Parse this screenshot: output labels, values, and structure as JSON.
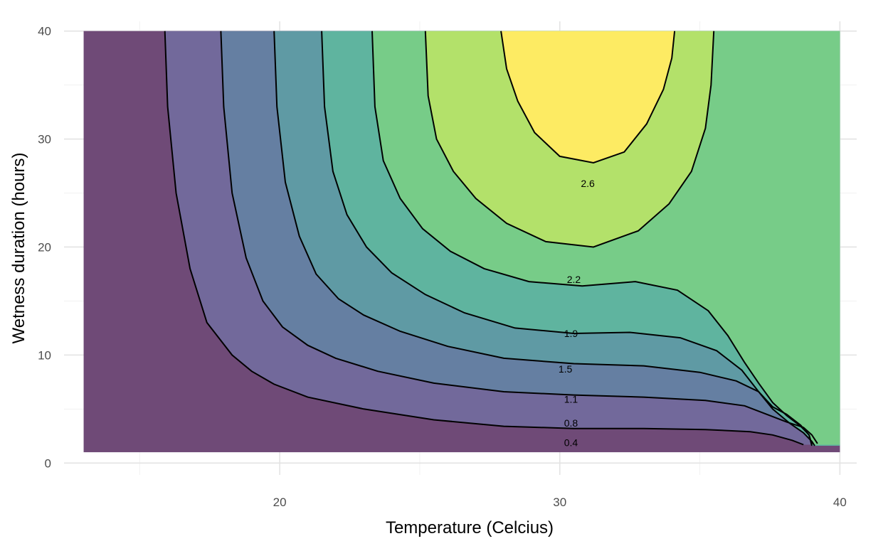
{
  "chart_data": {
    "type": "contour",
    "xlabel": "Temperature (Celcius)",
    "ylabel": "Wetness duration (hours)",
    "xlim": [
      12.3,
      40.6
    ],
    "ylim": [
      -1.1,
      40.9
    ],
    "x_range": [
      13,
      40
    ],
    "y_range": [
      1,
      40
    ],
    "x_ticks": [
      20,
      30,
      40
    ],
    "x_minor_ticks": [
      15,
      25,
      35
    ],
    "y_ticks": [
      0,
      10,
      20,
      30,
      40
    ],
    "y_minor_ticks": [
      5,
      15,
      25,
      35
    ],
    "x_tick_labels": [
      "20",
      "30",
      "40"
    ],
    "y_tick_labels": [
      "0",
      "10",
      "20",
      "30",
      "40"
    ],
    "grid": true,
    "colorscale": "viridis",
    "background_color": "#6f4a77",
    "band_colors": [
      "#6f4a77",
      "#72699b",
      "#657fa2",
      "#5f9aa4",
      "#5fb49f",
      "#77cc88",
      "#b3e16a",
      "#fdeb63"
    ],
    "levels": [
      {
        "value": 0.4,
        "label": "0.4",
        "label_x": 30.4,
        "label_y": 1.9,
        "points": [
          [
            15.9,
            40
          ],
          [
            16.0,
            33
          ],
          [
            16.3,
            25
          ],
          [
            16.8,
            18
          ],
          [
            17.4,
            13
          ],
          [
            18.3,
            10
          ],
          [
            19,
            8.5
          ],
          [
            19.8,
            7.3
          ],
          [
            21,
            6.1
          ],
          [
            23,
            5.0
          ],
          [
            25.5,
            4.0
          ],
          [
            28,
            3.4
          ],
          [
            30.5,
            3.2
          ],
          [
            33,
            3.2
          ],
          [
            35.2,
            3.1
          ],
          [
            36.8,
            2.9
          ],
          [
            37.6,
            2.6
          ],
          [
            38.3,
            2.1
          ],
          [
            38.7,
            1.7
          ]
        ]
      },
      {
        "value": 0.8,
        "label": "0.8",
        "label_x": 30.4,
        "label_y": 3.7,
        "points": [
          [
            17.9,
            40
          ],
          [
            18.0,
            33
          ],
          [
            18.3,
            25
          ],
          [
            18.8,
            19
          ],
          [
            19.4,
            15
          ],
          [
            20.1,
            12.6
          ],
          [
            21,
            10.9
          ],
          [
            22,
            9.7
          ],
          [
            23.5,
            8.5
          ],
          [
            25.5,
            7.4
          ],
          [
            28,
            6.6
          ],
          [
            30.5,
            6.3
          ],
          [
            33,
            6.1
          ],
          [
            35.2,
            5.8
          ],
          [
            36.6,
            5.3
          ],
          [
            37.4,
            4.5
          ],
          [
            38.1,
            3.8
          ],
          [
            38.7,
            3.3
          ],
          [
            39.0,
            2.6
          ],
          [
            39.2,
            1.8
          ]
        ]
      },
      {
        "value": 1.1,
        "label": "1.1",
        "label_x": 30.4,
        "label_y": 5.9,
        "points": [
          [
            19.8,
            40
          ],
          [
            19.9,
            33
          ],
          [
            20.2,
            26
          ],
          [
            20.7,
            21
          ],
          [
            21.3,
            17.5
          ],
          [
            22.1,
            15.2
          ],
          [
            23,
            13.7
          ],
          [
            24.3,
            12.2
          ],
          [
            26,
            10.8
          ],
          [
            28,
            9.7
          ],
          [
            30.5,
            9.2
          ],
          [
            33,
            9.0
          ],
          [
            35,
            8.4
          ],
          [
            36.3,
            7.6
          ],
          [
            37.1,
            6.6
          ],
          [
            37.6,
            5.2
          ],
          [
            38.1,
            4.5
          ],
          [
            38.6,
            3.5
          ],
          [
            38.9,
            2.6
          ],
          [
            39.0,
            1.6
          ]
        ]
      },
      {
        "value": 1.5,
        "label": "1.5",
        "label_x": 30.2,
        "label_y": 8.7,
        "points": [
          [
            21.5,
            40
          ],
          [
            21.6,
            33
          ],
          [
            21.9,
            27
          ],
          [
            22.4,
            23
          ],
          [
            23.1,
            20
          ],
          [
            24,
            17.6
          ],
          [
            25.2,
            15.6
          ],
          [
            26.6,
            13.9
          ],
          [
            28.4,
            12.5
          ],
          [
            30.5,
            12.0
          ],
          [
            32.5,
            12.1
          ],
          [
            34.3,
            11.6
          ],
          [
            35.6,
            10.4
          ],
          [
            36.5,
            8.6
          ],
          [
            37.1,
            6.6
          ],
          [
            37.6,
            5.0
          ],
          [
            38.2,
            3.7
          ],
          [
            38.7,
            2.8
          ],
          [
            39.0,
            2.0
          ],
          [
            39.1,
            1.6
          ]
        ]
      },
      {
        "value": 1.9,
        "label": "1.9",
        "label_x": 30.4,
        "label_y": 12.0,
        "points": [
          [
            23.3,
            40
          ],
          [
            23.4,
            33
          ],
          [
            23.7,
            28
          ],
          [
            24.3,
            24.5
          ],
          [
            25.1,
            21.7
          ],
          [
            26.1,
            19.6
          ],
          [
            27.3,
            18.0
          ],
          [
            28.9,
            16.8
          ],
          [
            30.8,
            16.4
          ],
          [
            32.7,
            16.8
          ],
          [
            34.2,
            16.0
          ],
          [
            35.3,
            14.1
          ],
          [
            36.0,
            11.8
          ],
          [
            36.6,
            9.3
          ],
          [
            37.1,
            7.4
          ],
          [
            37.6,
            5.6
          ],
          [
            38.1,
            4.4
          ],
          [
            38.6,
            3.4
          ],
          [
            38.9,
            2.6
          ],
          [
            39.0,
            1.7
          ]
        ]
      },
      {
        "value": 2.2,
        "label": "2.2",
        "label_x": 30.5,
        "label_y": 17.0,
        "points": [
          [
            25.2,
            40
          ],
          [
            25.3,
            34
          ],
          [
            25.6,
            30
          ],
          [
            26.2,
            27
          ],
          [
            27.0,
            24.5
          ],
          [
            28.1,
            22.2
          ],
          [
            29.5,
            20.5
          ],
          [
            31.2,
            20.0
          ],
          [
            32.8,
            21.5
          ],
          [
            33.9,
            24
          ],
          [
            34.7,
            27
          ],
          [
            35.2,
            31
          ],
          [
            35.4,
            35
          ],
          [
            35.5,
            40
          ]
        ]
      },
      {
        "value": 2.6,
        "label": "2.6",
        "label_x": 31.0,
        "label_y": 25.9,
        "points": [
          [
            27.9,
            40
          ],
          [
            28.1,
            36.5
          ],
          [
            28.5,
            33.5
          ],
          [
            29.1,
            30.6
          ],
          [
            30.0,
            28.4
          ],
          [
            31.2,
            27.8
          ],
          [
            32.3,
            28.8
          ],
          [
            33.1,
            31.4
          ],
          [
            33.7,
            34.6
          ],
          [
            34.0,
            37.5
          ],
          [
            34.1,
            40
          ]
        ]
      }
    ]
  }
}
